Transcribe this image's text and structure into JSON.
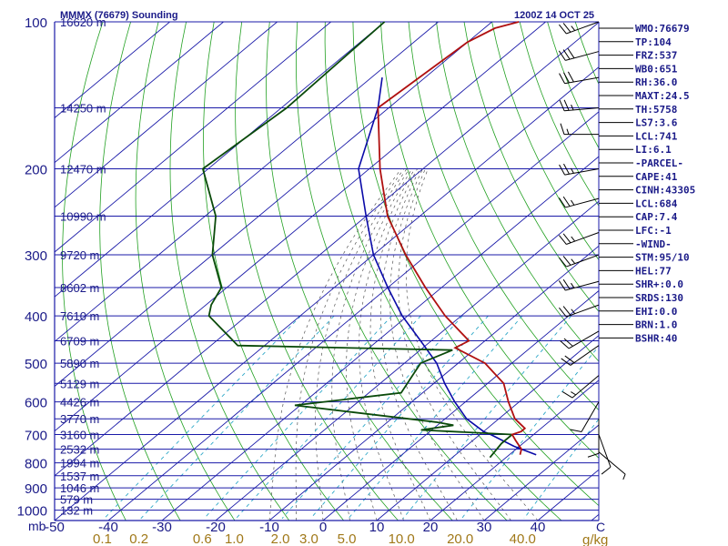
{
  "header": {
    "title": "MMMX (76679) Sounding",
    "time": "1200Z 14 OCT 25"
  },
  "chart_data": {
    "type": "skew-t",
    "pressure_unit": "mb",
    "temperature_unit": "C",
    "mixing_ratio_unit": "g/kg",
    "pressure_levels": [
      100,
      200,
      300,
      400,
      500,
      600,
      700,
      800,
      900,
      1000
    ],
    "pressure_tick_labels": [
      "100",
      "200",
      "300",
      "400",
      "500",
      "600",
      "700",
      "800",
      "900",
      "1000"
    ],
    "temperature_ticks": [
      -50,
      -40,
      -30,
      -20,
      -10,
      0,
      10,
      20,
      30,
      40
    ],
    "temperature_tick_labels": [
      "-50",
      "-40",
      "-30",
      "-20",
      "-10",
      "0",
      "10",
      "20",
      "30",
      "40"
    ],
    "mixing_ratio_labels": [
      "0.1",
      "0.2",
      "0.6",
      "1.0",
      "2.0",
      "3.0",
      "5.0",
      "10.0",
      "20.0",
      "40.0"
    ],
    "height_labels": [
      {
        "p": 100,
        "label": "16620 m"
      },
      {
        "p": 150,
        "label": "14250 m"
      },
      {
        "p": 200,
        "label": "12470 m"
      },
      {
        "p": 250,
        "label": "10990 m"
      },
      {
        "p": 300,
        "label": "9720 m"
      },
      {
        "p": 350,
        "label": "8602 m"
      },
      {
        "p": 400,
        "label": "7610 m"
      },
      {
        "p": 450,
        "label": "6709 m"
      },
      {
        "p": 500,
        "label": "5890 m"
      },
      {
        "p": 550,
        "label": "5129 m"
      },
      {
        "p": 600,
        "label": "4426 m"
      },
      {
        "p": 650,
        "label": "3770 m"
      },
      {
        "p": 700,
        "label": "3160 m"
      },
      {
        "p": 750,
        "label": "2532 m"
      },
      {
        "p": 800,
        "label": "1994 m"
      },
      {
        "p": 850,
        "label": "1537 m"
      },
      {
        "p": 900,
        "label": "1046 m"
      },
      {
        "p": 950,
        "label": "579 m"
      },
      {
        "p": 1000,
        "label": "132 m"
      }
    ],
    "temperature_profile": [
      {
        "p": 100,
        "t": -75
      },
      {
        "p": 103,
        "t": -78
      },
      {
        "p": 110,
        "t": -80
      },
      {
        "p": 150,
        "t": -82
      },
      {
        "p": 200,
        "t": -68
      },
      {
        "p": 250,
        "t": -56
      },
      {
        "p": 300,
        "t": -44
      },
      {
        "p": 350,
        "t": -33
      },
      {
        "p": 400,
        "t": -23
      },
      {
        "p": 450,
        "t": -13
      },
      {
        "p": 465,
        "t": -14
      },
      {
        "p": 500,
        "t": -5
      },
      {
        "p": 550,
        "t": 3
      },
      {
        "p": 600,
        "t": 8
      },
      {
        "p": 650,
        "t": 13
      },
      {
        "p": 680,
        "t": 17
      },
      {
        "p": 690,
        "t": 17
      },
      {
        "p": 700,
        "t": 16
      },
      {
        "p": 720,
        "t": 18
      },
      {
        "p": 750,
        "t": 21
      },
      {
        "p": 770,
        "t": 22
      }
    ],
    "dewpoint_profile": [
      {
        "p": 100,
        "t": -100
      },
      {
        "p": 150,
        "t": -99
      },
      {
        "p": 200,
        "t": -101
      },
      {
        "p": 250,
        "t": -88
      },
      {
        "p": 300,
        "t": -80
      },
      {
        "p": 350,
        "t": -71
      },
      {
        "p": 380,
        "t": -69
      },
      {
        "p": 400,
        "t": -67
      },
      {
        "p": 460,
        "t": -55
      },
      {
        "p": 470,
        "t": -14
      },
      {
        "p": 500,
        "t": -17
      },
      {
        "p": 575,
        "t": -14
      },
      {
        "p": 610,
        "t": -31
      },
      {
        "p": 660,
        "t": -1
      },
      {
        "p": 670,
        "t": 3
      },
      {
        "p": 685,
        "t": -2
      },
      {
        "p": 700,
        "t": 16
      },
      {
        "p": 730,
        "t": 16
      },
      {
        "p": 780,
        "t": 17
      }
    ],
    "parcel_profile": [
      {
        "p": 130,
        "t": -88
      },
      {
        "p": 150,
        "t": -82
      },
      {
        "p": 200,
        "t": -72
      },
      {
        "p": 250,
        "t": -60
      },
      {
        "p": 300,
        "t": -50
      },
      {
        "p": 350,
        "t": -40
      },
      {
        "p": 400,
        "t": -31
      },
      {
        "p": 450,
        "t": -22
      },
      {
        "p": 500,
        "t": -14
      },
      {
        "p": 550,
        "t": -8
      },
      {
        "p": 600,
        "t": -2
      },
      {
        "p": 650,
        "t": 4
      },
      {
        "p": 690,
        "t": 10
      },
      {
        "p": 700,
        "t": 12
      },
      {
        "p": 740,
        "t": 19
      },
      {
        "p": 770,
        "t": 25
      }
    ],
    "winds": [
      {
        "p": 100,
        "dir": 250,
        "spd": 25
      },
      {
        "p": 115,
        "dir": 255,
        "spd": 30
      },
      {
        "p": 130,
        "dir": 260,
        "spd": 30
      },
      {
        "p": 150,
        "dir": 265,
        "spd": 25
      },
      {
        "p": 170,
        "dir": 270,
        "spd": 15
      },
      {
        "p": 200,
        "dir": 260,
        "spd": 25
      },
      {
        "p": 230,
        "dir": 255,
        "spd": 25
      },
      {
        "p": 270,
        "dir": 250,
        "spd": 25
      },
      {
        "p": 300,
        "dir": 250,
        "spd": 25
      },
      {
        "p": 340,
        "dir": 255,
        "spd": 25
      },
      {
        "p": 380,
        "dir": 250,
        "spd": 25
      },
      {
        "p": 430,
        "dir": 240,
        "spd": 20
      },
      {
        "p": 460,
        "dir": 235,
        "spd": 20
      },
      {
        "p": 530,
        "dir": 230,
        "spd": 15
      },
      {
        "p": 600,
        "dir": 210,
        "spd": 10
      },
      {
        "p": 650,
        "dir": 180,
        "spd": 10
      },
      {
        "p": 700,
        "dir": 160,
        "spd": 10
      },
      {
        "p": 760,
        "dir": 130,
        "spd": 5
      }
    ]
  },
  "indices": [
    "WMO:76679",
    "TP:104",
    "FRZ:537",
    "WB0:651",
    "RH:36.0",
    "MAXT:24.5",
    "TH:5758",
    "LS7:3.6",
    "LCL:741",
    "LI:6.1",
    "-PARCEL-",
    "CAPE:41",
    "CINH:43305",
    "LCL:684",
    "CAP:7.4",
    "LFC:-1",
    "-WIND-",
    "STM:95/10",
    "HEL:77",
    "SHR+:0.0",
    "SRDS:130",
    "EHI:0.0",
    "BRN:1.0",
    "BSHR:40"
  ],
  "colors": {
    "isobar": "#1a1aa8",
    "isotherm": "#1a1aa8",
    "dry_adiabat": "#22a022",
    "moist_adiabat": "#555555",
    "mixing_ratio": "#2ea8c8",
    "temperature": "#b01010",
    "dewpoint": "#0a4a0a",
    "parcel": "#0a0aa8",
    "text": "#1a1a88",
    "tick_text": "#a07818"
  }
}
